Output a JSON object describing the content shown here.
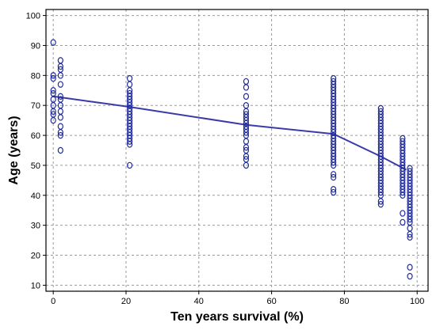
{
  "chart_data": {
    "type": "scatter",
    "title": "",
    "xlabel": "Ten years survival (%)",
    "ylabel": "Age (years)",
    "xlim": [
      -2,
      103
    ],
    "ylim": [
      8,
      102
    ],
    "xticks": [
      0,
      20,
      40,
      60,
      80,
      100
    ],
    "yticks": [
      10,
      20,
      30,
      40,
      50,
      60,
      70,
      80,
      90,
      100
    ],
    "grid": true,
    "colors": {
      "points": "#1f2a9c",
      "line": "#3a3aaa",
      "grid": "#9a9a9a"
    },
    "series": [
      {
        "type": "scatter",
        "points": [
          [
            0,
            91
          ],
          [
            0,
            80
          ],
          [
            0,
            79
          ],
          [
            0,
            75
          ],
          [
            0,
            74
          ],
          [
            0,
            72
          ],
          [
            0,
            70
          ],
          [
            0,
            68
          ],
          [
            0,
            67
          ],
          [
            0,
            65
          ],
          [
            2,
            85
          ],
          [
            2,
            83
          ],
          [
            2,
            82
          ],
          [
            2,
            80
          ],
          [
            2,
            77
          ],
          [
            2,
            73
          ],
          [
            2,
            72
          ],
          [
            2,
            70
          ],
          [
            2,
            68
          ],
          [
            2,
            66
          ],
          [
            2,
            63
          ],
          [
            2,
            61
          ],
          [
            2,
            60
          ],
          [
            2,
            55
          ],
          [
            21,
            79
          ],
          [
            21,
            77
          ],
          [
            21,
            75
          ],
          [
            21,
            74
          ],
          [
            21,
            73
          ],
          [
            21,
            72
          ],
          [
            21,
            71
          ],
          [
            21,
            70
          ],
          [
            21,
            69
          ],
          [
            21,
            68
          ],
          [
            21,
            67
          ],
          [
            21,
            66
          ],
          [
            21,
            65
          ],
          [
            21,
            64
          ],
          [
            21,
            63
          ],
          [
            21,
            62
          ],
          [
            21,
            61
          ],
          [
            21,
            60
          ],
          [
            21,
            59
          ],
          [
            21,
            58
          ],
          [
            21,
            57
          ],
          [
            21,
            50
          ],
          [
            53,
            78
          ],
          [
            53,
            76
          ],
          [
            53,
            73
          ],
          [
            53,
            70
          ],
          [
            53,
            68
          ],
          [
            53,
            67
          ],
          [
            53,
            66
          ],
          [
            53,
            65
          ],
          [
            53,
            64
          ],
          [
            53,
            63
          ],
          [
            53,
            62
          ],
          [
            53,
            61
          ],
          [
            53,
            60
          ],
          [
            53,
            58
          ],
          [
            53,
            56
          ],
          [
            53,
            55
          ],
          [
            53,
            53
          ],
          [
            53,
            52
          ],
          [
            53,
            50
          ],
          [
            77,
            79
          ],
          [
            77,
            78
          ],
          [
            77,
            77
          ],
          [
            77,
            76
          ],
          [
            77,
            75
          ],
          [
            77,
            74
          ],
          [
            77,
            73
          ],
          [
            77,
            72
          ],
          [
            77,
            71
          ],
          [
            77,
            70
          ],
          [
            77,
            69
          ],
          [
            77,
            68
          ],
          [
            77,
            67
          ],
          [
            77,
            66
          ],
          [
            77,
            65
          ],
          [
            77,
            64
          ],
          [
            77,
            63
          ],
          [
            77,
            62
          ],
          [
            77,
            61
          ],
          [
            77,
            60
          ],
          [
            77,
            59
          ],
          [
            77,
            58
          ],
          [
            77,
            57
          ],
          [
            77,
            56
          ],
          [
            77,
            55
          ],
          [
            77,
            54
          ],
          [
            77,
            53
          ],
          [
            77,
            52
          ],
          [
            77,
            51
          ],
          [
            77,
            50
          ],
          [
            77,
            47
          ],
          [
            77,
            46
          ],
          [
            77,
            42
          ],
          [
            77,
            41
          ],
          [
            90,
            69
          ],
          [
            90,
            68
          ],
          [
            90,
            67
          ],
          [
            90,
            66
          ],
          [
            90,
            65
          ],
          [
            90,
            64
          ],
          [
            90,
            63
          ],
          [
            90,
            62
          ],
          [
            90,
            61
          ],
          [
            90,
            60
          ],
          [
            90,
            59
          ],
          [
            90,
            58
          ],
          [
            90,
            57
          ],
          [
            90,
            56
          ],
          [
            90,
            55
          ],
          [
            90,
            54
          ],
          [
            90,
            53
          ],
          [
            90,
            52
          ],
          [
            90,
            51
          ],
          [
            90,
            50
          ],
          [
            90,
            49
          ],
          [
            90,
            48
          ],
          [
            90,
            47
          ],
          [
            90,
            46
          ],
          [
            90,
            45
          ],
          [
            90,
            44
          ],
          [
            90,
            43
          ],
          [
            90,
            42
          ],
          [
            90,
            41
          ],
          [
            90,
            40
          ],
          [
            90,
            38
          ],
          [
            90,
            37
          ],
          [
            96,
            59
          ],
          [
            96,
            58
          ],
          [
            96,
            57
          ],
          [
            96,
            56
          ],
          [
            96,
            55
          ],
          [
            96,
            54
          ],
          [
            96,
            53
          ],
          [
            96,
            52
          ],
          [
            96,
            51
          ],
          [
            96,
            50
          ],
          [
            96,
            49
          ],
          [
            96,
            48
          ],
          [
            96,
            47
          ],
          [
            96,
            46
          ],
          [
            96,
            45
          ],
          [
            96,
            44
          ],
          [
            96,
            43
          ],
          [
            96,
            42
          ],
          [
            96,
            41
          ],
          [
            96,
            40
          ],
          [
            96,
            34
          ],
          [
            96,
            31
          ],
          [
            98,
            49
          ],
          [
            98,
            48
          ],
          [
            98,
            47
          ],
          [
            98,
            46
          ],
          [
            98,
            45
          ],
          [
            98,
            44
          ],
          [
            98,
            43
          ],
          [
            98,
            42
          ],
          [
            98,
            41
          ],
          [
            98,
            40
          ],
          [
            98,
            39
          ],
          [
            98,
            38
          ],
          [
            98,
            37
          ],
          [
            98,
            36
          ],
          [
            98,
            35
          ],
          [
            98,
            34
          ],
          [
            98,
            33
          ],
          [
            98,
            32
          ],
          [
            98,
            31
          ],
          [
            98,
            29
          ],
          [
            98,
            27
          ],
          [
            98,
            26
          ],
          [
            98,
            16
          ],
          [
            98,
            13
          ]
        ]
      },
      {
        "type": "line",
        "points": [
          [
            0,
            73
          ],
          [
            21,
            69.5
          ],
          [
            53,
            63.5
          ],
          [
            77,
            60.5
          ],
          [
            90,
            53
          ],
          [
            97,
            48.5
          ]
        ]
      }
    ]
  }
}
